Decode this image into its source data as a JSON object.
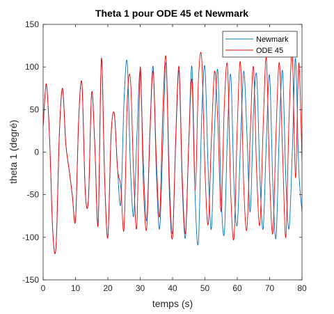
{
  "chart_data": {
    "type": "line",
    "title": "Theta 1 pour ODE 45 et Newmark",
    "xlabel": "temps (s)",
    "ylabel": "theta 1 (degré)",
    "xlim": [
      0,
      80
    ],
    "ylim": [
      -150,
      150
    ],
    "xticks": [
      "0",
      "10",
      "20",
      "30",
      "40",
      "50",
      "60",
      "70",
      "80"
    ],
    "yticks": [
      "-150",
      "-100",
      "-50",
      "0",
      "50",
      "100",
      "150"
    ],
    "grid": false,
    "legend_position": "top-right",
    "series": [
      {
        "name": "Newmark",
        "color": "#0072BD",
        "x": [
          0,
          1,
          2,
          3,
          4,
          5,
          6,
          7,
          8,
          9,
          10,
          11,
          12,
          13,
          14,
          15,
          16,
          17,
          18,
          19,
          20,
          21,
          22,
          23,
          24,
          25,
          26,
          27,
          28,
          29,
          30,
          31,
          32,
          33,
          34,
          35,
          36,
          37,
          38,
          39,
          40,
          41,
          42,
          43,
          44,
          45,
          46,
          47,
          48,
          49,
          50,
          51,
          52,
          53,
          54,
          55,
          56,
          57,
          58,
          59,
          60,
          61,
          62,
          63,
          64,
          65,
          66,
          67,
          68,
          69,
          70,
          71,
          72,
          73,
          74,
          75,
          76,
          77,
          78,
          79,
          80
        ],
        "y": [
          30,
          80,
          15,
          -95,
          -110,
          20,
          75,
          10,
          -20,
          -50,
          -80,
          40,
          80,
          -45,
          -55,
          70,
          5,
          -85,
          110,
          -30,
          -100,
          20,
          45,
          -20,
          -60,
          60,
          105,
          -20,
          -75,
          20,
          95,
          -15,
          -80,
          25,
          100,
          -25,
          -90,
          10,
          105,
          -30,
          -95,
          15,
          95,
          -40,
          -100,
          10,
          100,
          -55,
          -105,
          40,
          100,
          -20,
          -90,
          30,
          95,
          -50,
          -95,
          25,
          90,
          -40,
          -85,
          10,
          95,
          20,
          -70,
          45,
          90,
          -30,
          -90,
          15,
          90,
          -40,
          -100,
          25,
          95,
          -30,
          -90,
          0,
          110,
          -20,
          -70
        ]
      },
      {
        "name": "ODE 45",
        "color": "#FF0000",
        "x": [
          0,
          1,
          2,
          3,
          4,
          5,
          6,
          7,
          8,
          9,
          10,
          11,
          12,
          13,
          14,
          15,
          16,
          17,
          18,
          19,
          20,
          21,
          22,
          23,
          24,
          25,
          26,
          27,
          28,
          29,
          30,
          31,
          32,
          33,
          34,
          35,
          36,
          37,
          38,
          39,
          40,
          41,
          42,
          43,
          44,
          45,
          46,
          47,
          48,
          49,
          50,
          51,
          52,
          53,
          54,
          55,
          56,
          57,
          58,
          59,
          60,
          61,
          62,
          63,
          64,
          65,
          66,
          67,
          68,
          69,
          70,
          71,
          72,
          73,
          74,
          75,
          76,
          77,
          78,
          79,
          80
        ],
        "y": [
          30,
          80,
          15,
          -95,
          -110,
          20,
          75,
          10,
          -20,
          -50,
          -80,
          40,
          80,
          -45,
          -55,
          70,
          5,
          -85,
          110,
          -30,
          -100,
          20,
          45,
          -20,
          -40,
          -90,
          60,
          85,
          -30,
          -85,
          100,
          -40,
          -90,
          20,
          95,
          -10,
          -75,
          50,
          110,
          -45,
          -100,
          20,
          100,
          -30,
          -95,
          10,
          85,
          -45,
          85,
          110,
          -20,
          -85,
          15,
          95,
          35,
          -70,
          55,
          100,
          -50,
          -100,
          30,
          105,
          -40,
          -90,
          20,
          100,
          -25,
          -85,
          30,
          110,
          -30,
          -95,
          25,
          105,
          0,
          -100,
          40,
          115,
          -30,
          105,
          -10
        ]
      }
    ]
  }
}
